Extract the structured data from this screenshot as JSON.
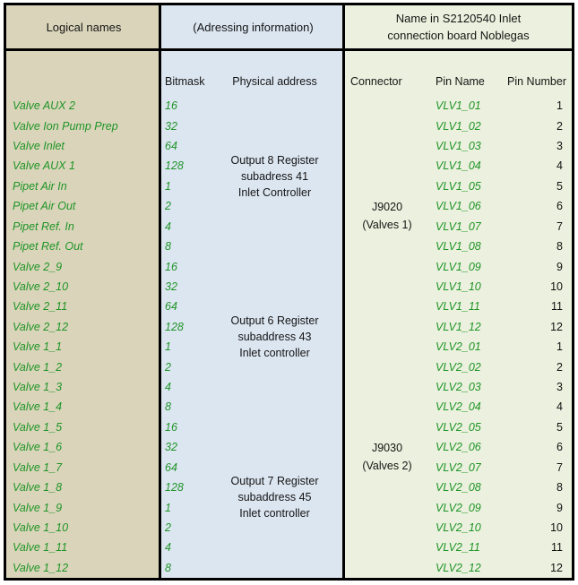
{
  "header": {
    "logical_names": "Logical names",
    "addressing_info": "(Adressing information)",
    "board_name_line1": "Name in S2120540 Inlet",
    "board_name_line2": "connection board Noblegas"
  },
  "subheader": {
    "bitmask": "Bitmask",
    "physical_address": "Physical address",
    "connector": "Connector",
    "pin_name": "Pin Name",
    "pin_number": "Pin Number"
  },
  "colors": {
    "tan_bg": "#DAD5BA",
    "blue_bg": "#DCE6F1",
    "green_bg": "#EBF1DE",
    "green_text": "#1F9427",
    "border": "#000000"
  },
  "physical_address_blocks": [
    {
      "row_span": 8,
      "lines": [
        "Output 8 Register",
        "subadress 41",
        "Inlet Controller"
      ]
    },
    {
      "row_span": 8,
      "lines": [
        "Output 6 Register",
        "subaddress 43",
        "Inlet controller"
      ]
    },
    {
      "row_span": 8,
      "lines": [
        "Output 7 Register",
        "subaddress 45",
        "Inlet controller"
      ]
    }
  ],
  "connector_blocks": [
    {
      "row_span": 12,
      "lines": [
        "J9020",
        "(Valves 1)"
      ]
    },
    {
      "row_span": 12,
      "lines": [
        "J9030",
        "(Valves 2)"
      ]
    }
  ],
  "rows": [
    {
      "logical": "Valve AUX 2",
      "bitmask": "16",
      "pin_name": "VLV1_01",
      "pin_number": "1"
    },
    {
      "logical": "Valve Ion Pump Prep",
      "bitmask": "32",
      "pin_name": "VLV1_02",
      "pin_number": "2"
    },
    {
      "logical": "Valve Inlet",
      "bitmask": "64",
      "pin_name": "VLV1_03",
      "pin_number": "3"
    },
    {
      "logical": "Valve AUX 1",
      "bitmask": "128",
      "pin_name": "VLV1_04",
      "pin_number": "4"
    },
    {
      "logical": "Pipet Air In",
      "bitmask": "1",
      "pin_name": "VLV1_05",
      "pin_number": "5"
    },
    {
      "logical": "Pipet Air Out",
      "bitmask": "2",
      "pin_name": "VLV1_06",
      "pin_number": "6"
    },
    {
      "logical": "Pipet Ref. In",
      "bitmask": "4",
      "pin_name": "VLV1_07",
      "pin_number": "7"
    },
    {
      "logical": "Pipet Ref. Out",
      "bitmask": "8",
      "pin_name": "VLV1_08",
      "pin_number": "8"
    },
    {
      "logical": "Valve 2_9",
      "bitmask": "16",
      "pin_name": "VLV1_09",
      "pin_number": "9"
    },
    {
      "logical": "Valve 2_10",
      "bitmask": "32",
      "pin_name": "VLV1_10",
      "pin_number": "10"
    },
    {
      "logical": "Valve 2_11",
      "bitmask": "64",
      "pin_name": "VLV1_11",
      "pin_number": "11"
    },
    {
      "logical": "Valve 2_12",
      "bitmask": "128",
      "pin_name": "VLV1_12",
      "pin_number": "12"
    },
    {
      "logical": "Valve 1_1",
      "bitmask": "1",
      "pin_name": "VLV2_01",
      "pin_number": "1"
    },
    {
      "logical": "Valve 1_2",
      "bitmask": "2",
      "pin_name": "VLV2_02",
      "pin_number": "2"
    },
    {
      "logical": "Valve 1_3",
      "bitmask": "4",
      "pin_name": "VLV2_03",
      "pin_number": "3"
    },
    {
      "logical": "Valve 1_4",
      "bitmask": "8",
      "pin_name": "VLV2_04",
      "pin_number": "4"
    },
    {
      "logical": "Valve 1_5",
      "bitmask": "16",
      "pin_name": "VLV2_05",
      "pin_number": "5"
    },
    {
      "logical": "Valve 1_6",
      "bitmask": "32",
      "pin_name": "VLV2_06",
      "pin_number": "6"
    },
    {
      "logical": "Valve 1_7",
      "bitmask": "64",
      "pin_name": "VLV2_07",
      "pin_number": "7"
    },
    {
      "logical": "Valve 1_8",
      "bitmask": "128",
      "pin_name": "VLV2_08",
      "pin_number": "8"
    },
    {
      "logical": "Valve 1_9",
      "bitmask": "1",
      "pin_name": "VLV2_09",
      "pin_number": "9"
    },
    {
      "logical": "Valve 1_10",
      "bitmask": "2",
      "pin_name": "VLV2_10",
      "pin_number": "10"
    },
    {
      "logical": "Valve 1_11",
      "bitmask": "4",
      "pin_name": "VLV2_11",
      "pin_number": "11"
    },
    {
      "logical": "Valve 1_12",
      "bitmask": "8",
      "pin_name": "VLV2_12",
      "pin_number": "12"
    }
  ]
}
